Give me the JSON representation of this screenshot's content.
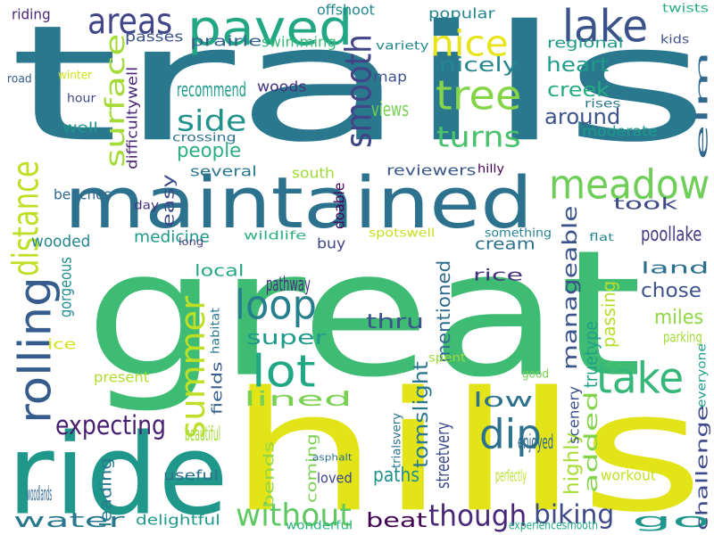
{
  "palette": {
    "background": "#ffffff",
    "viridis_dark": "#440154",
    "viridis_indigo": "#3b528b",
    "viridis_blue": "#31688e",
    "viridis_teal": "#21918c",
    "viridis_green": "#35b779",
    "viridis_lime": "#90d743",
    "viridis_yellow": "#fde725"
  },
  "words": [
    {
      "text": "trails",
      "color": "#2a788e"
    },
    {
      "text": "great",
      "color": "#3fbc73"
    },
    {
      "text": "hills",
      "color": "#e2e418"
    },
    {
      "text": "maintained",
      "color": "#2c728e"
    },
    {
      "text": "ride",
      "color": "#1f988b"
    },
    {
      "text": "paved",
      "color": "#22a785"
    },
    {
      "text": "areas",
      "color": "#404688"
    },
    {
      "text": "lake",
      "color": "#3b528b"
    },
    {
      "text": "nice",
      "color": "#e7e419"
    },
    {
      "text": "tree",
      "color": "#86d549"
    },
    {
      "text": "meadow",
      "color": "#6ece58"
    },
    {
      "text": "distance",
      "color": "#bddf26"
    },
    {
      "text": "rolling",
      "color": "#365c8d"
    },
    {
      "text": "loop",
      "color": "#277f8e"
    },
    {
      "text": "lot",
      "color": "#22a785"
    },
    {
      "text": "take",
      "color": "#35b779"
    },
    {
      "text": "summer",
      "color": "#bddf26"
    },
    {
      "text": "dip",
      "color": "#2c728e"
    },
    {
      "text": "smooth",
      "color": "#414487"
    },
    {
      "text": "surface",
      "color": "#a5db36"
    },
    {
      "text": "turns",
      "color": "#4ac16d"
    },
    {
      "text": "side",
      "color": "#21918c"
    },
    {
      "text": "without",
      "color": "#5ec962"
    },
    {
      "text": "though",
      "color": "#482878"
    },
    {
      "text": "biking",
      "color": "#3e4989"
    },
    {
      "text": "expecting",
      "color": "#481f70"
    },
    {
      "text": "manageable",
      "color": "#3b528b"
    },
    {
      "text": "nicely",
      "color": "#24868e"
    },
    {
      "text": "heart",
      "color": "#1e9c89"
    },
    {
      "text": "creek",
      "color": "#25ab82"
    },
    {
      "text": "around",
      "color": "#3b528b"
    },
    {
      "text": "views",
      "color": "#75d054"
    },
    {
      "text": "elm",
      "color": "#31688e"
    },
    {
      "text": "recommend",
      "color": "#1e9b8a"
    },
    {
      "text": "people",
      "color": "#29af7f"
    },
    {
      "text": "super",
      "color": "#1f9a8a"
    },
    {
      "text": "pathway",
      "color": "#46327e"
    },
    {
      "text": "thru",
      "color": "#3b528b"
    },
    {
      "text": "lined",
      "color": "#7ad151"
    },
    {
      "text": "beautiful",
      "color": "#a2da37"
    },
    {
      "text": "low",
      "color": "#2d718e"
    },
    {
      "text": "highly",
      "color": "#a8db34"
    },
    {
      "text": "enjoyed",
      "color": "#31688e"
    },
    {
      "text": "paths",
      "color": "#21918c"
    },
    {
      "text": "beat",
      "color": "#440154"
    },
    {
      "text": "water",
      "color": "#2a788e"
    },
    {
      "text": "woodlands",
      "color": "#31688e"
    },
    {
      "text": "go",
      "color": "#1f968b"
    },
    {
      "text": "poollake",
      "color": "#453781"
    },
    {
      "text": "chose",
      "color": "#3b528b"
    },
    {
      "text": "miles",
      "color": "#8fd744"
    },
    {
      "text": "land",
      "color": "#2d708e"
    },
    {
      "text": "passing",
      "color": "#b5de2b"
    },
    {
      "text": "parking",
      "color": "#a2da37"
    },
    {
      "text": "added",
      "color": "#84d44b"
    },
    {
      "text": "took",
      "color": "#3e4989"
    },
    {
      "text": "mentioned",
      "color": "#2f6c8e"
    },
    {
      "text": "tomslight",
      "color": "#2a788e"
    },
    {
      "text": "truetype",
      "color": "#1fa088"
    },
    {
      "text": "streetvery",
      "color": "#3e4989"
    },
    {
      "text": "perfectly",
      "color": "#b8de29"
    },
    {
      "text": "rice",
      "color": "#46327e"
    },
    {
      "text": "cream",
      "color": "#2c718e"
    },
    {
      "text": "local",
      "color": "#22a884"
    },
    {
      "text": "wooded",
      "color": "#24868e"
    },
    {
      "text": "medicine",
      "color": "#1f9a8a"
    },
    {
      "text": "wildlife",
      "color": "#2db27d"
    },
    {
      "text": "buy",
      "color": "#404588"
    },
    {
      "text": "spotswell",
      "color": "#c8e020"
    },
    {
      "text": "something",
      "color": "#26828e"
    },
    {
      "text": "flat",
      "color": "#24868e"
    },
    {
      "text": "easy",
      "color": "#3e4989"
    },
    {
      "text": "day",
      "color": "#46327e"
    },
    {
      "text": "doable",
      "color": "#450457"
    },
    {
      "text": "long",
      "color": "#433e85"
    },
    {
      "text": "several",
      "color": "#2a788e"
    },
    {
      "text": "south",
      "color": "#a0da39"
    },
    {
      "text": "reviewers",
      "color": "#38588c"
    },
    {
      "text": "hilly",
      "color": "#440154"
    },
    {
      "text": "benches",
      "color": "#31688e"
    },
    {
      "text": "difficultywell",
      "color": "#482576"
    },
    {
      "text": "crossing",
      "color": "#2d708e"
    },
    {
      "text": "moderate",
      "color": "#1e9c89"
    },
    {
      "text": "rises",
      "color": "#2a788e"
    },
    {
      "text": "map",
      "color": "#3b528b"
    },
    {
      "text": "woods",
      "color": "#46327e"
    },
    {
      "text": "swimming",
      "color": "#38b977"
    },
    {
      "text": "prairie",
      "color": "#34618d"
    },
    {
      "text": "passes",
      "color": "#3b528b"
    },
    {
      "text": "offshoot",
      "color": "#24868e"
    },
    {
      "text": "popular",
      "color": "#24868e"
    },
    {
      "text": "regional",
      "color": "#1f9a8a"
    },
    {
      "text": "variety",
      "color": "#23898e"
    },
    {
      "text": "kids",
      "color": "#3b528b"
    },
    {
      "text": "twists",
      "color": "#29af7f"
    },
    {
      "text": "riding",
      "color": "#482878"
    },
    {
      "text": "road",
      "color": "#365d8d"
    },
    {
      "text": "winter",
      "color": "#d2e21b"
    },
    {
      "text": "hour",
      "color": "#404688"
    },
    {
      "text": "well",
      "color": "#1f968b"
    },
    {
      "text": "gorgeous",
      "color": "#228d8d"
    },
    {
      "text": "ice",
      "color": "#d5e21a"
    },
    {
      "text": "habitat",
      "color": "#2a788e"
    },
    {
      "text": "present",
      "color": "#b0dd2f"
    },
    {
      "text": "fields",
      "color": "#365c8d"
    },
    {
      "text": "useful",
      "color": "#2d718e"
    },
    {
      "text": "leading",
      "color": "#2a788e"
    },
    {
      "text": "delightful",
      "color": "#1f9a8a"
    },
    {
      "text": "bends",
      "color": "#8fd744"
    },
    {
      "text": "coming",
      "color": "#7ad151"
    },
    {
      "text": "loved",
      "color": "#3e4989"
    },
    {
      "text": "wonderful",
      "color": "#2db27d"
    },
    {
      "text": "trialsvery",
      "color": "#2c728e"
    },
    {
      "text": "asphalt",
      "color": "#2d708e"
    },
    {
      "text": "experiencesmooth",
      "color": "#22a785"
    },
    {
      "text": "workout",
      "color": "#c5e021"
    },
    {
      "text": "challenge",
      "color": "#3e4989"
    },
    {
      "text": "scenery",
      "color": "#3b528b"
    },
    {
      "text": "everyone",
      "color": "#1f9e89"
    },
    {
      "text": "good",
      "color": "#75d054"
    },
    {
      "text": "spent",
      "color": "#a0da39"
    }
  ]
}
